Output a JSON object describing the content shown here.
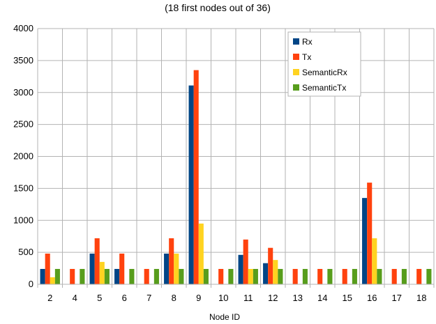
{
  "chart_data": {
    "type": "bar",
    "title": "(18 first nodes out of 36)",
    "xlabel": "Node ID",
    "ylabel": "",
    "ylim": [
      0,
      4000
    ],
    "yticks": [
      0,
      500,
      1000,
      1500,
      2000,
      2500,
      3000,
      3500,
      4000
    ],
    "grid": true,
    "legend_position": "top-right",
    "categories": [
      "2",
      "4",
      "5",
      "6",
      "7",
      "8",
      "9",
      "10",
      "11",
      "12",
      "13",
      "14",
      "15",
      "16",
      "17",
      "18"
    ],
    "series": [
      {
        "name": "Rx",
        "color": "#004586",
        "values": [
          240,
          0,
          480,
          240,
          0,
          480,
          3110,
          0,
          460,
          330,
          0,
          0,
          0,
          1350,
          0,
          0
        ]
      },
      {
        "name": "Tx",
        "color": "#ff420e",
        "values": [
          480,
          240,
          720,
          480,
          240,
          720,
          3350,
          240,
          700,
          570,
          240,
          240,
          240,
          1590,
          240,
          240
        ]
      },
      {
        "name": "SemanticRx",
        "color": "#ffd320",
        "values": [
          110,
          0,
          350,
          0,
          0,
          480,
          950,
          0,
          240,
          380,
          0,
          0,
          0,
          720,
          0,
          0
        ]
      },
      {
        "name": "SemanticTx",
        "color": "#579d1c",
        "values": [
          240,
          240,
          240,
          240,
          240,
          240,
          240,
          240,
          240,
          240,
          240,
          240,
          240,
          240,
          240,
          240
        ]
      }
    ]
  }
}
